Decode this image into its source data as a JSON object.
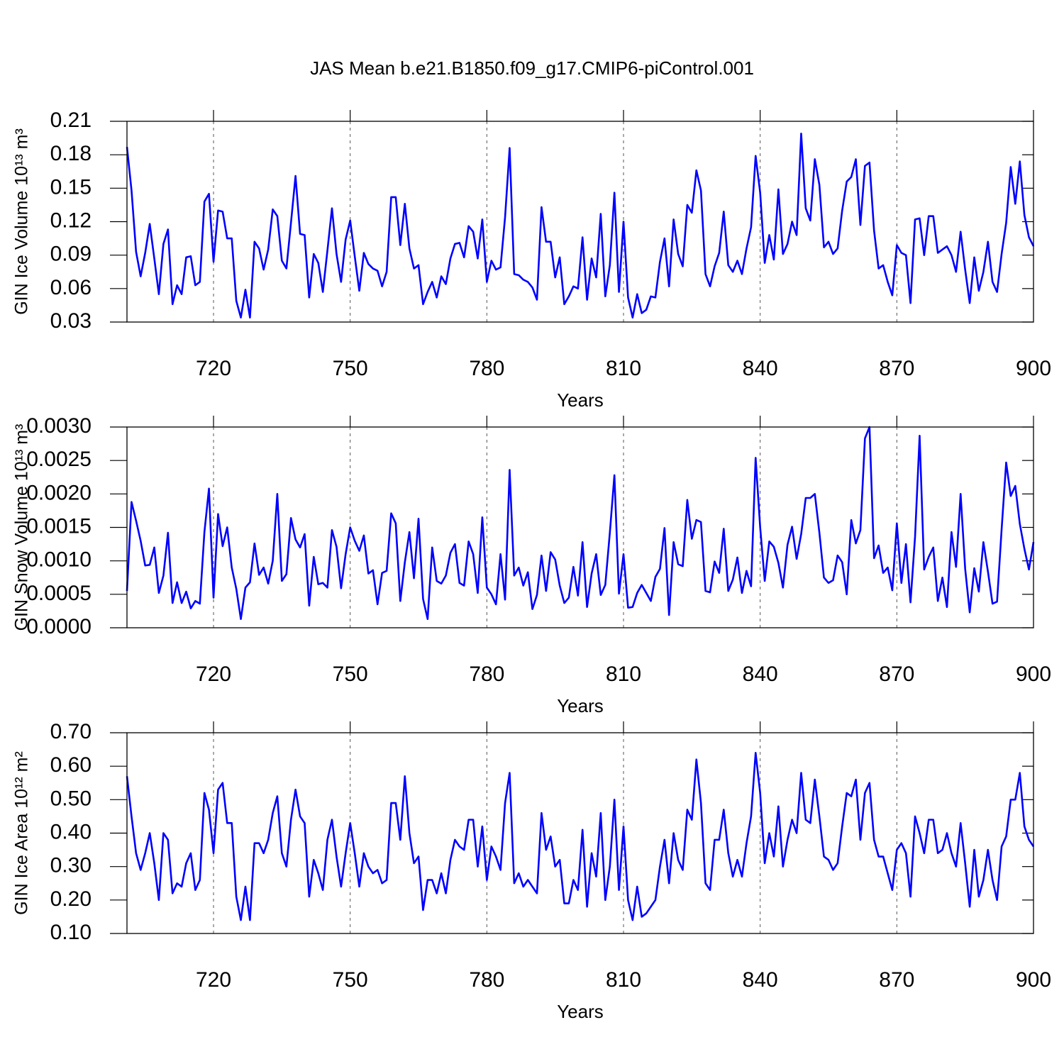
{
  "chart_data": [
    {
      "type": "line",
      "title": "JAS Mean b.e21.B1850.f09_g17.CMIP6-piControl.001",
      "ylabel": "GIN Ice Volume 10¹³ m³",
      "xlabel": "Years",
      "color": "#0000ff",
      "xgrid": true,
      "xlim": [
        701,
        900
      ],
      "xticks": [
        720,
        750,
        780,
        810,
        840,
        870,
        900
      ],
      "ylim": [
        0.03,
        0.21
      ],
      "yticks": [
        0.21,
        0.18,
        0.15,
        0.12,
        0.09,
        0.06,
        0.03
      ],
      "x": [
        701,
        702,
        703,
        704,
        705,
        706,
        707,
        708,
        709,
        710,
        711,
        712,
        713,
        714,
        715,
        716,
        717,
        718,
        719,
        720,
        721,
        722,
        723,
        724,
        725,
        726,
        727,
        728,
        729,
        730,
        731,
        732,
        733,
        734,
        735,
        736,
        737,
        738,
        739,
        740,
        741,
        742,
        743,
        744,
        745,
        746,
        747,
        748,
        749,
        750,
        751,
        752,
        753,
        754,
        755,
        756,
        757,
        758,
        759,
        760,
        761,
        762,
        763,
        764,
        765,
        766,
        767,
        768,
        769,
        770,
        771,
        772,
        773,
        774,
        775,
        776,
        777,
        778,
        779,
        780,
        781,
        782,
        783,
        784,
        785,
        786,
        787,
        788,
        789,
        790,
        791,
        792,
        793,
        794,
        795,
        796,
        797,
        798,
        799,
        800,
        801,
        802,
        803,
        804,
        805,
        806,
        807,
        808,
        809,
        810,
        811,
        812,
        813,
        814,
        815,
        816,
        817,
        818,
        819,
        820,
        821,
        822,
        823,
        824,
        825,
        826,
        827,
        828,
        829,
        830,
        831,
        832,
        833,
        834,
        835,
        836,
        837,
        838,
        839,
        840,
        841,
        842,
        843,
        844,
        845,
        846,
        847,
        848,
        849,
        850,
        851,
        852,
        853,
        854,
        855,
        856,
        857,
        858,
        859,
        860,
        861,
        862,
        863,
        864,
        865,
        866,
        867,
        868,
        869,
        870,
        871,
        872,
        873,
        874,
        875,
        876,
        877,
        878,
        879,
        880,
        881,
        882,
        883,
        884,
        885,
        886,
        887,
        888,
        889,
        890,
        891,
        892,
        893,
        894,
        895,
        896,
        897,
        898,
        899,
        900
      ],
      "values": [
        0.187,
        0.148,
        0.093,
        0.071,
        0.092,
        0.118,
        0.087,
        0.055,
        0.1,
        0.113,
        0.046,
        0.063,
        0.055,
        0.088,
        0.089,
        0.063,
        0.066,
        0.138,
        0.145,
        0.084,
        0.13,
        0.129,
        0.105,
        0.105,
        0.049,
        0.034,
        0.059,
        0.034,
        0.102,
        0.096,
        0.077,
        0.095,
        0.131,
        0.125,
        0.085,
        0.078,
        0.119,
        0.161,
        0.109,
        0.108,
        0.052,
        0.091,
        0.083,
        0.057,
        0.094,
        0.132,
        0.091,
        0.066,
        0.104,
        0.121,
        0.089,
        0.058,
        0.092,
        0.082,
        0.078,
        0.076,
        0.062,
        0.075,
        0.142,
        0.142,
        0.099,
        0.136,
        0.096,
        0.078,
        0.081,
        0.046,
        0.057,
        0.066,
        0.052,
        0.071,
        0.064,
        0.087,
        0.1,
        0.101,
        0.088,
        0.116,
        0.111,
        0.087,
        0.122,
        0.066,
        0.085,
        0.077,
        0.079,
        0.124,
        0.186,
        0.073,
        0.072,
        0.068,
        0.066,
        0.061,
        0.05,
        0.133,
        0.102,
        0.102,
        0.07,
        0.088,
        0.046,
        0.053,
        0.062,
        0.06,
        0.106,
        0.05,
        0.087,
        0.07,
        0.127,
        0.053,
        0.081,
        0.146,
        0.057,
        0.12,
        0.052,
        0.034,
        0.055,
        0.038,
        0.041,
        0.053,
        0.052,
        0.084,
        0.105,
        0.062,
        0.122,
        0.091,
        0.08,
        0.135,
        0.128,
        0.166,
        0.148,
        0.073,
        0.062,
        0.08,
        0.092,
        0.129,
        0.081,
        0.075,
        0.085,
        0.073,
        0.096,
        0.115,
        0.179,
        0.146,
        0.083,
        0.108,
        0.086,
        0.149,
        0.091,
        0.1,
        0.12,
        0.108,
        0.199,
        0.132,
        0.121,
        0.176,
        0.153,
        0.097,
        0.102,
        0.091,
        0.096,
        0.13,
        0.156,
        0.16,
        0.176,
        0.117,
        0.17,
        0.173,
        0.112,
        0.078,
        0.081,
        0.066,
        0.054,
        0.099,
        0.092,
        0.09,
        0.047,
        0.122,
        0.123,
        0.09,
        0.125,
        0.125,
        0.092,
        0.095,
        0.098,
        0.09,
        0.075,
        0.111,
        0.077,
        0.047,
        0.088,
        0.058,
        0.075,
        0.102,
        0.066,
        0.057,
        0.091,
        0.119,
        0.169,
        0.136,
        0.174,
        0.126,
        0.106,
        0.098
      ]
    },
    {
      "type": "line",
      "ylabel": "GIN Snow Volume 10¹³ m³",
      "xlabel": "Years",
      "color": "#0000ff",
      "xgrid": true,
      "xlim": [
        701,
        900
      ],
      "xticks": [
        720,
        750,
        780,
        810,
        840,
        870,
        900
      ],
      "ylim": [
        0,
        0.003
      ],
      "yticks": [
        {
          "value": 0.003,
          "label": "0.0030"
        },
        {
          "value": 0.0025,
          "label": "0.0025"
        },
        {
          "value": 0.002,
          "label": "0.0020"
        },
        {
          "value": 0.0015,
          "label": "0.0015"
        },
        {
          "value": 0.001,
          "label": "0.0010"
        },
        {
          "value": 0.0005,
          "label": "0.0005"
        },
        {
          "value": 0,
          "label": "0.0000"
        }
      ],
      "x": [
        701,
        702,
        703,
        704,
        705,
        706,
        707,
        708,
        709,
        710,
        711,
        712,
        713,
        714,
        715,
        716,
        717,
        718,
        719,
        720,
        721,
        722,
        723,
        724,
        725,
        726,
        727,
        728,
        729,
        730,
        731,
        732,
        733,
        734,
        735,
        736,
        737,
        738,
        739,
        740,
        741,
        742,
        743,
        744,
        745,
        746,
        747,
        748,
        749,
        750,
        751,
        752,
        753,
        754,
        755,
        756,
        757,
        758,
        759,
        760,
        761,
        762,
        763,
        764,
        765,
        766,
        767,
        768,
        769,
        770,
        771,
        772,
        773,
        774,
        775,
        776,
        777,
        778,
        779,
        780,
        781,
        782,
        783,
        784,
        785,
        786,
        787,
        788,
        789,
        790,
        791,
        792,
        793,
        794,
        795,
        796,
        797,
        798,
        799,
        800,
        801,
        802,
        803,
        804,
        805,
        806,
        807,
        808,
        809,
        810,
        811,
        812,
        813,
        814,
        815,
        816,
        817,
        818,
        819,
        820,
        821,
        822,
        823,
        824,
        825,
        826,
        827,
        828,
        829,
        830,
        831,
        832,
        833,
        834,
        835,
        836,
        837,
        838,
        839,
        840,
        841,
        842,
        843,
        844,
        845,
        846,
        847,
        848,
        849,
        850,
        851,
        852,
        853,
        854,
        855,
        856,
        857,
        858,
        859,
        860,
        861,
        862,
        863,
        864,
        865,
        866,
        867,
        868,
        869,
        870,
        871,
        872,
        873,
        874,
        875,
        876,
        877,
        878,
        879,
        880,
        881,
        882,
        883,
        884,
        885,
        886,
        887,
        888,
        889,
        890,
        891,
        892,
        893,
        894,
        895,
        896,
        897,
        898,
        899,
        900
      ],
      "values": [
        0.00055,
        0.00188,
        0.0016,
        0.0013,
        0.00093,
        0.00094,
        0.0012,
        0.00052,
        0.00078,
        0.00142,
        0.00037,
        0.00068,
        0.00037,
        0.00054,
        0.00029,
        0.0004,
        0.00036,
        0.00143,
        0.00208,
        0.00045,
        0.0017,
        0.00122,
        0.0015,
        0.0009,
        0.00058,
        0.00013,
        0.0006,
        0.00068,
        0.00126,
        0.00079,
        0.0009,
        0.00066,
        0.001,
        0.002,
        0.0007,
        0.0008,
        0.00164,
        0.00132,
        0.0012,
        0.0014,
        0.00033,
        0.00106,
        0.00065,
        0.00067,
        0.0006,
        0.00146,
        0.00121,
        0.00059,
        0.0011,
        0.0015,
        0.0013,
        0.00115,
        0.00138,
        0.00081,
        0.00086,
        0.00035,
        0.00082,
        0.00085,
        0.00171,
        0.00156,
        0.0004,
        0.00098,
        0.00143,
        0.00074,
        0.00163,
        0.00043,
        0.00013,
        0.0012,
        0.0007,
        0.00066,
        0.00078,
        0.00112,
        0.00125,
        0.00067,
        0.00063,
        0.00129,
        0.0011,
        0.00052,
        0.00165,
        0.0006,
        0.0005,
        0.00035,
        0.0011,
        0.00042,
        0.00236,
        0.00078,
        0.0009,
        0.00063,
        0.00083,
        0.00028,
        0.00049,
        0.00108,
        0.00055,
        0.00113,
        0.00102,
        0.00063,
        0.00037,
        0.00045,
        0.00091,
        0.00048,
        0.00128,
        0.00031,
        0.00081,
        0.0011,
        0.00049,
        0.00064,
        0.00142,
        0.00228,
        0.00051,
        0.0011,
        0.0003,
        0.00031,
        0.00052,
        0.00064,
        0.00052,
        0.0004,
        0.00076,
        0.00088,
        0.00149,
        0.00019,
        0.00128,
        0.00095,
        0.00092,
        0.00191,
        0.00133,
        0.00161,
        0.00158,
        0.00055,
        0.00053,
        0.00099,
        0.00082,
        0.00148,
        0.00055,
        0.00072,
        0.00105,
        0.00052,
        0.00085,
        0.00062,
        0.00254,
        0.0015,
        0.0007,
        0.00129,
        0.00121,
        0.00097,
        0.0006,
        0.00124,
        0.00151,
        0.00103,
        0.0014,
        0.00194,
        0.00194,
        0.002,
        0.00142,
        0.00075,
        0.00067,
        0.00071,
        0.00108,
        0.00098,
        0.0005,
        0.00161,
        0.00126,
        0.00146,
        0.00283,
        0.003,
        0.00104,
        0.00123,
        0.00082,
        0.0009,
        0.00056,
        0.00156,
        0.00067,
        0.00125,
        0.00038,
        0.00136,
        0.00287,
        0.00087,
        0.00106,
        0.0012,
        0.0004,
        0.00075,
        0.00031,
        0.00143,
        0.00091,
        0.002,
        0.00088,
        0.00023,
        0.00089,
        0.00054,
        0.00128,
        0.00084,
        0.00036,
        0.00039,
        0.00147,
        0.00247,
        0.00197,
        0.00212,
        0.00155,
        0.00118,
        0.00087,
        0.00128
      ]
    },
    {
      "type": "line",
      "ylabel": "GIN Ice Area 10¹² m²",
      "xlabel": "Years",
      "color": "#0000ff",
      "xgrid": true,
      "xlim": [
        701,
        900
      ],
      "xticks": [
        720,
        750,
        780,
        810,
        840,
        870,
        900
      ],
      "ylim": [
        0.1,
        0.7
      ],
      "yticks": [
        {
          "value": 0.7,
          "label": "0.70"
        },
        {
          "value": 0.6,
          "label": "0.60"
        },
        {
          "value": 0.5,
          "label": "0.50"
        },
        {
          "value": 0.4,
          "label": "0.40"
        },
        {
          "value": 0.3,
          "label": "0.30"
        },
        {
          "value": 0.2,
          "label": "0.20"
        },
        {
          "value": 0.1,
          "label": "0.10"
        }
      ],
      "x": [
        701,
        702,
        703,
        704,
        705,
        706,
        707,
        708,
        709,
        710,
        711,
        712,
        713,
        714,
        715,
        716,
        717,
        718,
        719,
        720,
        721,
        722,
        723,
        724,
        725,
        726,
        727,
        728,
        729,
        730,
        731,
        732,
        733,
        734,
        735,
        736,
        737,
        738,
        739,
        740,
        741,
        742,
        743,
        744,
        745,
        746,
        747,
        748,
        749,
        750,
        751,
        752,
        753,
        754,
        755,
        756,
        757,
        758,
        759,
        760,
        761,
        762,
        763,
        764,
        765,
        766,
        767,
        768,
        769,
        770,
        771,
        772,
        773,
        774,
        775,
        776,
        777,
        778,
        779,
        780,
        781,
        782,
        783,
        784,
        785,
        786,
        787,
        788,
        789,
        790,
        791,
        792,
        793,
        794,
        795,
        796,
        797,
        798,
        799,
        800,
        801,
        802,
        803,
        804,
        805,
        806,
        807,
        808,
        809,
        810,
        811,
        812,
        813,
        814,
        815,
        816,
        817,
        818,
        819,
        820,
        821,
        822,
        823,
        824,
        825,
        826,
        827,
        828,
        829,
        830,
        831,
        832,
        833,
        834,
        835,
        836,
        837,
        838,
        839,
        840,
        841,
        842,
        843,
        844,
        845,
        846,
        847,
        848,
        849,
        850,
        851,
        852,
        853,
        854,
        855,
        856,
        857,
        858,
        859,
        860,
        861,
        862,
        863,
        864,
        865,
        866,
        867,
        868,
        869,
        870,
        871,
        872,
        873,
        874,
        875,
        876,
        877,
        878,
        879,
        880,
        881,
        882,
        883,
        884,
        885,
        886,
        887,
        888,
        889,
        890,
        891,
        892,
        893,
        894,
        895,
        896,
        897,
        898,
        899,
        900
      ],
      "values": [
        0.57,
        0.45,
        0.34,
        0.29,
        0.34,
        0.4,
        0.31,
        0.2,
        0.4,
        0.38,
        0.22,
        0.25,
        0.24,
        0.31,
        0.34,
        0.23,
        0.26,
        0.52,
        0.47,
        0.34,
        0.53,
        0.55,
        0.43,
        0.43,
        0.21,
        0.14,
        0.24,
        0.14,
        0.37,
        0.37,
        0.34,
        0.38,
        0.46,
        0.51,
        0.34,
        0.3,
        0.44,
        0.53,
        0.45,
        0.43,
        0.21,
        0.32,
        0.28,
        0.23,
        0.38,
        0.44,
        0.33,
        0.24,
        0.34,
        0.43,
        0.34,
        0.24,
        0.34,
        0.3,
        0.28,
        0.29,
        0.25,
        0.26,
        0.49,
        0.49,
        0.38,
        0.57,
        0.4,
        0.31,
        0.33,
        0.17,
        0.26,
        0.26,
        0.22,
        0.28,
        0.22,
        0.32,
        0.38,
        0.36,
        0.35,
        0.44,
        0.44,
        0.3,
        0.42,
        0.26,
        0.36,
        0.33,
        0.29,
        0.49,
        0.58,
        0.25,
        0.28,
        0.24,
        0.26,
        0.24,
        0.22,
        0.46,
        0.35,
        0.39,
        0.3,
        0.32,
        0.19,
        0.19,
        0.26,
        0.23,
        0.41,
        0.18,
        0.34,
        0.27,
        0.46,
        0.2,
        0.3,
        0.5,
        0.23,
        0.42,
        0.2,
        0.14,
        0.24,
        0.15,
        0.16,
        0.18,
        0.2,
        0.3,
        0.38,
        0.25,
        0.4,
        0.32,
        0.29,
        0.47,
        0.44,
        0.62,
        0.49,
        0.25,
        0.23,
        0.38,
        0.38,
        0.47,
        0.34,
        0.27,
        0.32,
        0.27,
        0.37,
        0.45,
        0.64,
        0.52,
        0.31,
        0.4,
        0.33,
        0.48,
        0.3,
        0.38,
        0.44,
        0.4,
        0.58,
        0.44,
        0.43,
        0.56,
        0.45,
        0.33,
        0.32,
        0.29,
        0.31,
        0.42,
        0.52,
        0.51,
        0.56,
        0.38,
        0.52,
        0.55,
        0.38,
        0.33,
        0.33,
        0.28,
        0.23,
        0.35,
        0.37,
        0.34,
        0.21,
        0.45,
        0.4,
        0.34,
        0.44,
        0.44,
        0.34,
        0.35,
        0.4,
        0.34,
        0.3,
        0.43,
        0.31,
        0.18,
        0.35,
        0.21,
        0.26,
        0.35,
        0.26,
        0.2,
        0.36,
        0.39,
        0.5,
        0.5,
        0.58,
        0.42,
        0.38,
        0.36
      ]
    }
  ]
}
